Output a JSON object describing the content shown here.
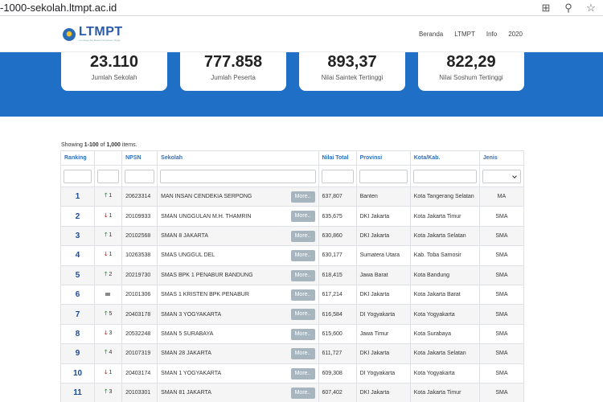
{
  "browser": {
    "url": "-1000-sekolah.ltmpt.ac.id",
    "icons": [
      "grid-icon",
      "zoom-icon",
      "star-icon"
    ]
  },
  "site": {
    "logo": "LTMPT",
    "logo_sub": "Lembaga Tes Masuk Perguruan Tinggi",
    "nav": [
      "Beranda",
      "LTMPT",
      "Info",
      "2020"
    ]
  },
  "stats": [
    {
      "value": "23.110",
      "label": "Jumlah Sekolah"
    },
    {
      "value": "777.858",
      "label": "Jumlah Peserta"
    },
    {
      "value": "893,37",
      "label": "Nilai Saintek Tertinggi"
    },
    {
      "value": "822,29",
      "label": "Nilai Soshum Tertinggi"
    }
  ],
  "summary": {
    "prefix": "Showing ",
    "range": "1-100",
    "mid": " of ",
    "total": "1,000",
    "suffix": " items."
  },
  "colors": {
    "accent": "#1f6fc7",
    "header_text": "#2a6fbf",
    "up": "#2e9a3e",
    "down": "#d9261c",
    "more_button": "#a7b5bf"
  },
  "table": {
    "headers": [
      "Ranking",
      "",
      "NPSN",
      "Sekolah",
      "Nilai Total",
      "Provinsi",
      "Kota/Kab.",
      "Jenis"
    ],
    "more_label": "More..",
    "rows": [
      {
        "rank": "1",
        "dir": "up",
        "chg": "1",
        "npsn": "20623314",
        "school": "MAN INSAN CENDEKIA SERPONG",
        "total": "637,807",
        "prov": "Banten",
        "kota": "Kota Tangerang Selatan",
        "jenis": "MA"
      },
      {
        "rank": "2",
        "dir": "down",
        "chg": "1",
        "npsn": "20109933",
        "school": "SMAN UNGGULAN M.H. THAMRIN",
        "total": "635,675",
        "prov": "DKI Jakarta",
        "kota": "Kota Jakarta Timur",
        "jenis": "SMA"
      },
      {
        "rank": "3",
        "dir": "up",
        "chg": "1",
        "npsn": "20102568",
        "school": "SMAN 8 JAKARTA",
        "total": "630,860",
        "prov": "DKI Jakarta",
        "kota": "Kota Jakarta Selatan",
        "jenis": "SMA"
      },
      {
        "rank": "4",
        "dir": "down",
        "chg": "1",
        "npsn": "10263538",
        "school": "SMAS UNGGUL DEL",
        "total": "630,177",
        "prov": "Sumatera Utara",
        "kota": "Kab. Toba Samosir",
        "jenis": "SMA"
      },
      {
        "rank": "5",
        "dir": "up",
        "chg": "2",
        "npsn": "20219730",
        "school": "SMAS BPK 1 PENABUR BANDUNG",
        "total": "618,415",
        "prov": "Jawa Barat",
        "kota": "Kota Bandung",
        "jenis": "SMA"
      },
      {
        "rank": "6",
        "dir": "same",
        "chg": "",
        "npsn": "20101306",
        "school": "SMAS 1 KRISTEN BPK PENABUR",
        "total": "617,214",
        "prov": "DKI Jakarta",
        "kota": "Kota Jakarta Barat",
        "jenis": "SMA"
      },
      {
        "rank": "7",
        "dir": "up",
        "chg": "5",
        "npsn": "20403178",
        "school": "SMAN 3 YOGYAKARTA",
        "total": "616,584",
        "prov": "DI Yogyakarta",
        "kota": "Kota Yogyakarta",
        "jenis": "SMA"
      },
      {
        "rank": "8",
        "dir": "down",
        "chg": "3",
        "npsn": "20532248",
        "school": "SMAN 5 SURABAYA",
        "total": "615,600",
        "prov": "Jawa Timur",
        "kota": "Kota Surabaya",
        "jenis": "SMA"
      },
      {
        "rank": "9",
        "dir": "up",
        "chg": "4",
        "npsn": "20107319",
        "school": "SMAN 28 JAKARTA",
        "total": "611,727",
        "prov": "DKI Jakarta",
        "kota": "Kota Jakarta Selatan",
        "jenis": "SMA"
      },
      {
        "rank": "10",
        "dir": "down",
        "chg": "1",
        "npsn": "20403174",
        "school": "SMAN 1 YOGYAKARTA",
        "total": "609,308",
        "prov": "DI Yogyakarta",
        "kota": "Kota Yogyakarta",
        "jenis": "SMA"
      },
      {
        "rank": "11",
        "dir": "up",
        "chg": "3",
        "npsn": "20103301",
        "school": "SMAN 81 JAKARTA",
        "total": "607,402",
        "prov": "DKI Jakarta",
        "kota": "Kota Jakarta Timur",
        "jenis": "SMA"
      }
    ]
  }
}
